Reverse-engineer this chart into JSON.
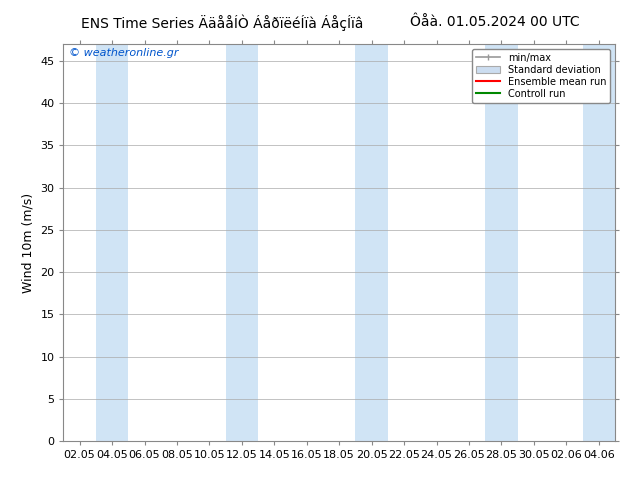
{
  "title": "ENS Time Series ÄäååÍÒ ÁåðïëéÍïà ÁåçÍïâ",
  "title_left": "ENS Time Series ÄäååÍÒ ÁåðïëéÍïà ÁåçÍïâ",
  "title_right": "Ôåà. 01.05.2024 00 UTC",
  "ylabel": "Wind 10m (m/s)",
  "watermark": "© weatheronline.gr",
  "ylim": [
    0,
    47
  ],
  "yticks": [
    0,
    5,
    10,
    15,
    20,
    25,
    30,
    35,
    40,
    45
  ],
  "x_labels": [
    "02.05",
    "04.05",
    "06.05",
    "08.05",
    "10.05",
    "12.05",
    "14.05",
    "16.05",
    "18.05",
    "20.05",
    "22.05",
    "24.05",
    "26.05",
    "28.05",
    "30.05",
    "02.06",
    "04.06"
  ],
  "n_cols": 17,
  "background_color": "#ffffff",
  "plot_bg_color": "#ffffff",
  "blue_stripe_indices": [
    1,
    5,
    9,
    13,
    16
  ],
  "blue_stripe_color": "#d0e4f5",
  "legend_items": [
    {
      "label": "min/max",
      "color": "#aaaaaa",
      "type": "errorbar"
    },
    {
      "label": "Standard deviation",
      "color": "#ccddf0",
      "type": "box"
    },
    {
      "label": "Ensemble mean run",
      "color": "#ff0000",
      "type": "line"
    },
    {
      "label": "Controll run",
      "color": "#008800",
      "type": "line"
    }
  ],
  "title_fontsize": 10,
  "tick_fontsize": 8,
  "ylabel_fontsize": 9,
  "watermark_color": "#0055cc",
  "grid_color": "#cccccc"
}
